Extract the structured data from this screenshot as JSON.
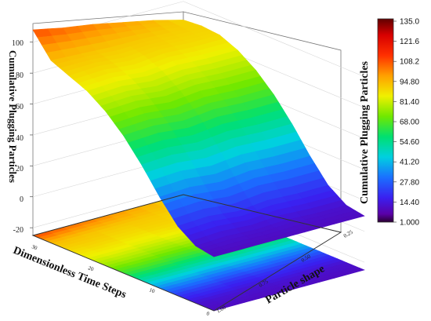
{
  "chart_data": {
    "type": "surface3d",
    "title": "",
    "axes": {
      "x": {
        "label": "Particle shape",
        "ticks": [
          "0.25",
          "0.50",
          "0.75",
          "1.00"
        ],
        "range": [
          0.25,
          1.0
        ]
      },
      "y": {
        "label": "Dimensionless Time Steps",
        "ticks": [
          "30",
          "20",
          "10",
          "0"
        ],
        "range": [
          0,
          30
        ]
      },
      "z": {
        "label": "Cumulative Plugging Particles",
        "ticks": [
          "-20",
          "0",
          "20",
          "40",
          "60",
          "80",
          "100"
        ],
        "range": [
          -25,
          110
        ]
      }
    },
    "time_steps": [
      0,
      3,
      6,
      9,
      12,
      15,
      18,
      21,
      24,
      27,
      30
    ],
    "particle_shape": [
      0.25,
      0.4,
      0.55,
      0.7,
      0.85,
      1.0
    ],
    "surface_z": [
      [
        10,
        10,
        10,
        10,
        10,
        10
      ],
      [
        12,
        13,
        12,
        13,
        12,
        12
      ],
      [
        20,
        21,
        19,
        21,
        20,
        20
      ],
      [
        34,
        35,
        33,
        35,
        34,
        34
      ],
      [
        50,
        51,
        49,
        51,
        50,
        50
      ],
      [
        64,
        65,
        63,
        65,
        64,
        64
      ],
      [
        75,
        76,
        74,
        76,
        75,
        75
      ],
      [
        83,
        84,
        82,
        84,
        83,
        83
      ],
      [
        88,
        89,
        87,
        89,
        88,
        88
      ],
      [
        93,
        92,
        91,
        91,
        90,
        89
      ],
      [
        108,
        104,
        101,
        97,
        93,
        88
      ]
    ],
    "colorbar": {
      "title": "Cumulative Plugging Particles",
      "labels": [
        "135.0",
        "121.6",
        "108.2",
        "94.80",
        "81.40",
        "68.00",
        "54.60",
        "41.20",
        "27.80",
        "14.40",
        "1.000"
      ],
      "range": [
        1.0,
        135.0
      ]
    },
    "grid": true,
    "floor_projection": true
  }
}
